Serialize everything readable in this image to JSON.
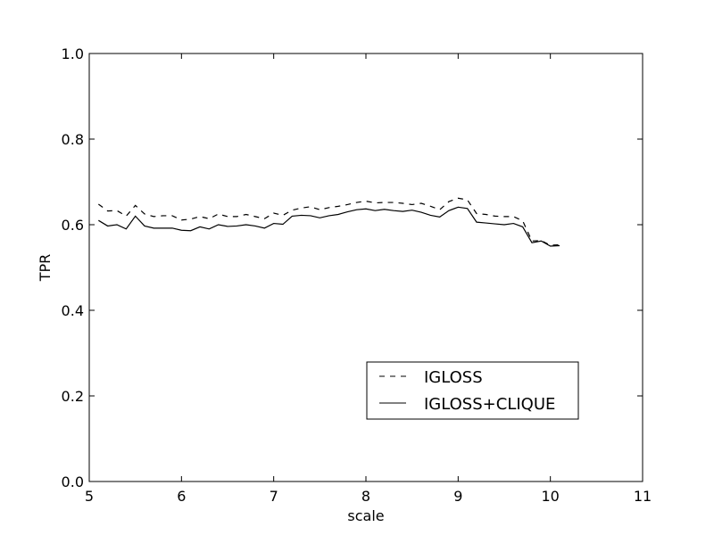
{
  "chart_data": {
    "type": "line",
    "title": "",
    "xlabel": "scale",
    "ylabel": "TPR",
    "xlim": [
      5,
      11
    ],
    "ylim": [
      0.0,
      1.0
    ],
    "xticks": [
      5,
      6,
      7,
      8,
      9,
      10,
      11
    ],
    "yticks": [
      0.0,
      0.2,
      0.4,
      0.6,
      0.8,
      1.0
    ],
    "xtick_labels": [
      "5",
      "6",
      "7",
      "8",
      "9",
      "10",
      "11"
    ],
    "ytick_labels": [
      "0.0",
      "0.2",
      "0.4",
      "0.6",
      "0.8",
      "1.0"
    ],
    "grid": false,
    "legend_position": "lower-right",
    "x": [
      5.1,
      5.2,
      5.3,
      5.4,
      5.5,
      5.6,
      5.7,
      5.8,
      5.9,
      6.0,
      6.1,
      6.2,
      6.3,
      6.4,
      6.5,
      6.6,
      6.7,
      6.8,
      6.9,
      7.0,
      7.1,
      7.2,
      7.3,
      7.4,
      7.5,
      7.6,
      7.7,
      7.8,
      7.9,
      8.0,
      8.1,
      8.2,
      8.3,
      8.4,
      8.5,
      8.6,
      8.7,
      8.8,
      8.9,
      9.0,
      9.1,
      9.2,
      9.3,
      9.4,
      9.5,
      9.6,
      9.7,
      9.8,
      9.9,
      10.0,
      10.1
    ],
    "series": [
      {
        "name": "IGLOSS",
        "dash": "dashed",
        "color": "#000000",
        "values": [
          0.648,
          0.632,
          0.633,
          0.62,
          0.645,
          0.625,
          0.619,
          0.621,
          0.621,
          0.611,
          0.613,
          0.619,
          0.614,
          0.625,
          0.619,
          0.619,
          0.624,
          0.619,
          0.614,
          0.627,
          0.622,
          0.634,
          0.639,
          0.642,
          0.635,
          0.64,
          0.643,
          0.647,
          0.652,
          0.655,
          0.651,
          0.652,
          0.652,
          0.65,
          0.647,
          0.65,
          0.643,
          0.635,
          0.654,
          0.662,
          0.658,
          0.626,
          0.624,
          0.62,
          0.619,
          0.619,
          0.609,
          0.562,
          0.563,
          0.552,
          0.553
        ]
      },
      {
        "name": "IGLOSS+CLIQUE",
        "dash": "solid",
        "color": "#000000",
        "values": [
          0.61,
          0.597,
          0.6,
          0.59,
          0.62,
          0.597,
          0.592,
          0.592,
          0.592,
          0.587,
          0.586,
          0.595,
          0.59,
          0.6,
          0.596,
          0.597,
          0.6,
          0.597,
          0.592,
          0.603,
          0.601,
          0.62,
          0.622,
          0.621,
          0.616,
          0.621,
          0.624,
          0.63,
          0.635,
          0.637,
          0.633,
          0.636,
          0.633,
          0.631,
          0.634,
          0.629,
          0.622,
          0.618,
          0.633,
          0.641,
          0.638,
          0.606,
          0.604,
          0.602,
          0.6,
          0.603,
          0.595,
          0.558,
          0.562,
          0.55,
          0.551
        ]
      }
    ]
  }
}
